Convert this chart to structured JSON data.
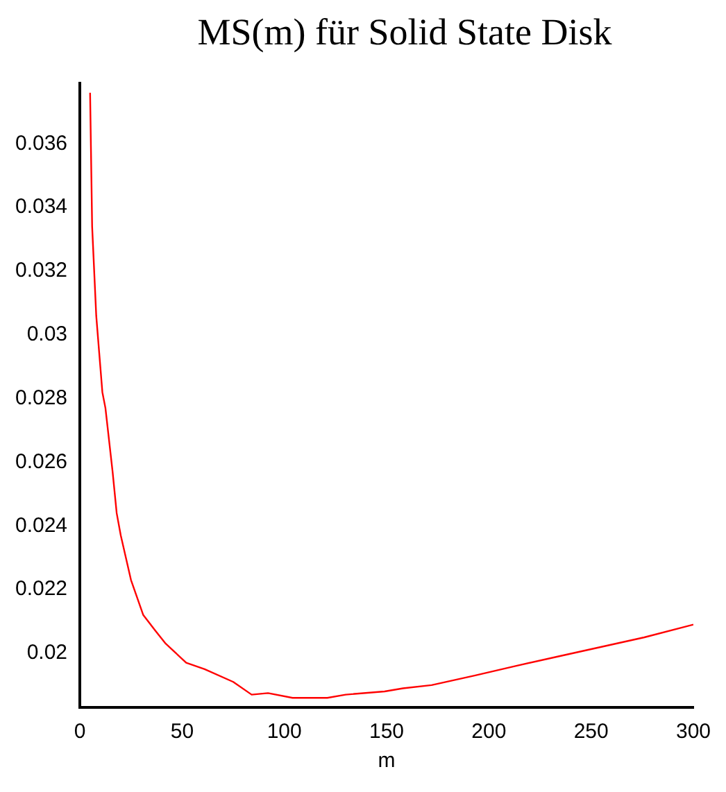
{
  "chart_data": {
    "type": "line",
    "title": "MS(m)   für Solid State Disk",
    "xlabel": "m",
    "x": [
      5,
      6,
      8,
      10,
      11,
      12.5,
      16,
      18,
      20,
      25,
      31,
      37,
      42,
      52,
      61,
      75,
      84,
      92,
      104,
      121,
      130,
      149,
      158,
      172,
      193,
      213,
      234,
      255,
      276,
      300
    ],
    "series": [
      {
        "color": "#ff0000",
        "values": [
          0.0376,
          0.0334,
          0.0306,
          0.029,
          0.0282,
          0.0277,
          0.0257,
          0.0244,
          0.0237,
          0.0223,
          0.0212,
          0.0207,
          0.0203,
          0.0197,
          0.0195,
          0.0191,
          0.0187,
          0.01875,
          0.0186,
          0.0186,
          0.0187,
          0.0188,
          0.0189,
          0.019,
          0.0193,
          0.0196,
          0.0199,
          0.0202,
          0.0205,
          0.0209
        ]
      }
    ],
    "xlim": [
      0,
      300
    ],
    "xticks": [
      0,
      50,
      100,
      150,
      200,
      250,
      300
    ],
    "ylim": [
      0.0183,
      0.0379
    ],
    "yticks": [
      0.02,
      0.022,
      0.024,
      0.026,
      0.028,
      0.03,
      0.032,
      0.034,
      0.036
    ],
    "grid": false,
    "legend": false,
    "marker": "none",
    "line_style": "solid"
  }
}
